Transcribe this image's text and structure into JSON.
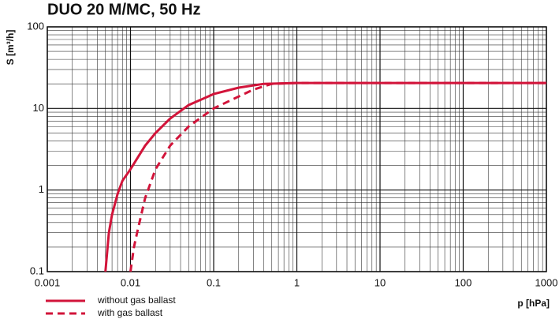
{
  "chart_data": {
    "type": "line",
    "title": "DUO 20 M/MC, 50 Hz",
    "ylabel": "S [m³/h]",
    "xlabel": "p [hPa]",
    "xscale": "log",
    "yscale": "log",
    "grid": true,
    "minor_grid": true,
    "xlim": [
      0.001,
      1000
    ],
    "ylim": [
      0.1,
      100
    ],
    "xticks": [
      0.001,
      0.01,
      0.1,
      1,
      10,
      100,
      1000
    ],
    "yticks": [
      0.1,
      1,
      10,
      100
    ],
    "legend": "bottom-left",
    "series": [
      {
        "name": "without gas ballast",
        "color": "#d2143a",
        "dash": false,
        "x": [
          0.005,
          0.0055,
          0.006,
          0.007,
          0.008,
          0.01,
          0.015,
          0.02,
          0.03,
          0.05,
          0.1,
          0.2,
          0.4,
          1,
          1000
        ],
        "values": [
          0.1,
          0.3,
          0.5,
          0.9,
          1.3,
          1.8,
          3.5,
          5,
          7.5,
          11,
          15,
          18,
          20,
          20.5,
          20.5
        ]
      },
      {
        "name": "with gas ballast",
        "color": "#d2143a",
        "dash": true,
        "x": [
          0.01,
          0.011,
          0.012,
          0.015,
          0.02,
          0.03,
          0.05,
          0.1,
          0.2,
          0.3,
          0.5,
          1,
          1000
        ],
        "values": [
          0.1,
          0.2,
          0.3,
          0.8,
          1.8,
          3.5,
          6,
          10,
          14,
          17,
          20,
          20.5,
          20.5
        ]
      }
    ]
  }
}
